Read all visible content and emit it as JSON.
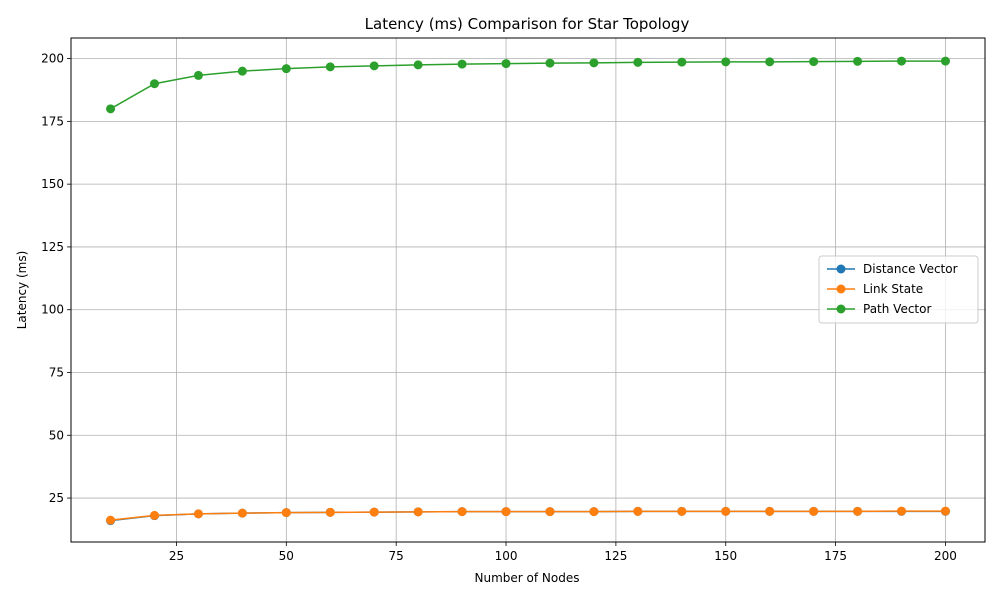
{
  "chart_data": {
    "type": "line",
    "title": "Latency (ms) Comparison for Star Topology",
    "xlabel": "Number of Nodes",
    "ylabel": "Latency (ms)",
    "xlim": [
      1,
      209
    ],
    "ylim": [
      7.5,
      208.2
    ],
    "xticks": [
      25,
      50,
      75,
      100,
      125,
      150,
      175,
      200
    ],
    "yticks": [
      25,
      50,
      75,
      100,
      125,
      150,
      175,
      200
    ],
    "grid": true,
    "legend_position": "center-right",
    "x": [
      10,
      20,
      30,
      40,
      50,
      60,
      70,
      80,
      90,
      100,
      110,
      120,
      130,
      140,
      150,
      160,
      170,
      180,
      190,
      200
    ],
    "series": [
      {
        "name": "Distance Vector",
        "color": "#1f77b4",
        "values": [
          16.0,
          18.0,
          18.7,
          19.0,
          19.2,
          19.3,
          19.4,
          19.5,
          19.6,
          19.6,
          19.6,
          19.6,
          19.7,
          19.7,
          19.7,
          19.7,
          19.7,
          19.7,
          19.7,
          19.7
        ]
      },
      {
        "name": "Link State",
        "color": "#ff7f0e",
        "values": [
          16.2,
          18.1,
          18.7,
          19.0,
          19.2,
          19.3,
          19.4,
          19.5,
          19.6,
          19.6,
          19.6,
          19.6,
          19.7,
          19.7,
          19.7,
          19.7,
          19.7,
          19.7,
          19.8,
          19.8
        ]
      },
      {
        "name": "Path Vector",
        "color": "#2ca02c",
        "values": [
          180.0,
          190.0,
          193.3,
          195.0,
          196.0,
          196.7,
          197.1,
          197.5,
          197.8,
          198.0,
          198.2,
          198.3,
          198.5,
          198.6,
          198.7,
          198.7,
          198.8,
          198.9,
          199.0,
          199.0
        ]
      }
    ]
  }
}
